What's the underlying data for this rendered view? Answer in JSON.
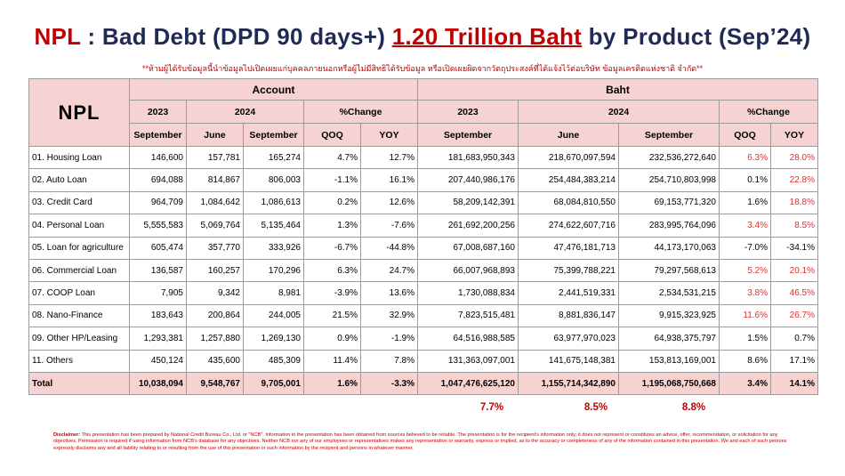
{
  "title": {
    "prefix": "NPL",
    "mid": " : Bad Debt (DPD 90 days+) ",
    "amount": "1.20 Trillion Baht",
    "suffix": " by Product (Sep’24)"
  },
  "note": "**ห้ามผู้ได้รับข้อมูลนี้นำข้อมูลไปเปิดเผยแก่บุคคลภายนอกหรือผู้ไม่มีสิทธิได้รับข้อมูล หรือเปิดเผยผิดจากวัตถุประสงค์ที่ได้แจ้งไว้ต่อบริษัท ข้อมูลเครดิตแห่งชาติ จำกัด**",
  "header": {
    "corner": "NPL",
    "account": "Account",
    "baht": "Baht",
    "y2023": "2023",
    "y2024": "2024",
    "pct_change": "%Change",
    "september": "September",
    "june": "June",
    "qoq": "QOQ",
    "yoy": "YOY"
  },
  "rows": [
    {
      "label": "01. Housing Loan",
      "a23": "146,600",
      "ajun": "157,781",
      "asep": "165,274",
      "aqoq": "4.7%",
      "ayoy": "12.7%",
      "b23": "181,683,950,343",
      "bjun": "218,670,097,594",
      "bsep": "232,536,272,640",
      "bqoq": "6.3%",
      "byoy": "28.0%"
    },
    {
      "label": "02. Auto Loan",
      "a23": "694,088",
      "ajun": "814,867",
      "asep": "806,003",
      "aqoq": "-1.1%",
      "ayoy": "16.1%",
      "b23": "207,440,986,176",
      "bjun": "254,484,383,214",
      "bsep": "254,710,803,998",
      "bqoq": "0.1%",
      "byoy": "22.8%"
    },
    {
      "label": "03. Credit Card",
      "a23": "964,709",
      "ajun": "1,084,642",
      "asep": "1,086,613",
      "aqoq": "0.2%",
      "ayoy": "12.6%",
      "b23": "58,209,142,391",
      "bjun": "68,084,810,550",
      "bsep": "69,153,771,320",
      "bqoq": "1.6%",
      "byoy": "18.8%"
    },
    {
      "label": "04. Personal Loan",
      "a23": "5,555,583",
      "ajun": "5,069,764",
      "asep": "5,135,464",
      "aqoq": "1.3%",
      "ayoy": "-7.6%",
      "b23": "261,692,200,256",
      "bjun": "274,622,607,716",
      "bsep": "283,995,764,096",
      "bqoq": "3.4%",
      "byoy": "8.5%"
    },
    {
      "label": "05. Loan for agriculture",
      "a23": "605,474",
      "ajun": "357,770",
      "asep": "333,926",
      "aqoq": "-6.7%",
      "ayoy": "-44.8%",
      "b23": "67,008,687,160",
      "bjun": "47,476,181,713",
      "bsep": "44,173,170,063",
      "bqoq": "-7.0%",
      "byoy": "-34.1%"
    },
    {
      "label": "06. Commercial Loan",
      "a23": "136,587",
      "ajun": "160,257",
      "asep": "170,296",
      "aqoq": "6.3%",
      "ayoy": "24.7%",
      "b23": "66,007,968,893",
      "bjun": "75,399,788,221",
      "bsep": "79,297,568,613",
      "bqoq": "5.2%",
      "byoy": "20.1%"
    },
    {
      "label": "07. COOP Loan",
      "a23": "7,905",
      "ajun": "9,342",
      "asep": "8,981",
      "aqoq": "-3.9%",
      "ayoy": "13.6%",
      "b23": "1,730,088,834",
      "bjun": "2,441,519,331",
      "bsep": "2,534,531,215",
      "bqoq": "3.8%",
      "byoy": "46.5%"
    },
    {
      "label": "08. Nano-Finance",
      "a23": "183,643",
      "ajun": "200,864",
      "asep": "244,005",
      "aqoq": "21.5%",
      "ayoy": "32.9%",
      "b23": "7,823,515,481",
      "bjun": "8,881,836,147",
      "bsep": "9,915,323,925",
      "bqoq": "11.6%",
      "byoy": "26.7%"
    },
    {
      "label": "09. Other HP/Leasing",
      "a23": "1,293,381",
      "ajun": "1,257,880",
      "asep": "1,269,130",
      "aqoq": "0.9%",
      "ayoy": "-1.9%",
      "b23": "64,516,988,585",
      "bjun": "63,977,970,023",
      "bsep": "64,938,375,797",
      "bqoq": "1.5%",
      "byoy": "0.7%"
    },
    {
      "label": "11. Others",
      "a23": "450,124",
      "ajun": "435,600",
      "asep": "485,309",
      "aqoq": "11.4%",
      "ayoy": "7.8%",
      "b23": "131,363,097,001",
      "bjun": "141,675,148,381",
      "bsep": "153,813,169,001",
      "bqoq": "8.6%",
      "byoy": "17.1%"
    }
  ],
  "total": {
    "label": "Total",
    "a23": "10,038,094",
    "ajun": "9,548,767",
    "asep": "9,705,001",
    "aqoq": "1.6%",
    "ayoy": "-3.3%",
    "b23": "1,047,476,625,120",
    "bjun": "1,155,714,342,890",
    "bsep": "1,195,068,750,668",
    "bqoq": "3.4%",
    "byoy": "14.1%"
  },
  "ratios": {
    "sep23": "7.7%",
    "jun24": "8.5%",
    "sep24": "8.8%"
  },
  "highlight_color": "#e03030",
  "disclaimer": {
    "label": "Disclaimer:",
    "text": " This presentation has been prepared by National Credit Bureau Co., Ltd. or \"NCB\". Information in the presentation has been obtained from sources believed to be reliable. The presentation is for the recipient's information only; it does not represent or constitutes an advice, offer, recommendation, or solicitation for any objectives. Permission is required if using information from NCB's database for any objectives. Neither NCB nor any of our employees or representatives makes any representation or warranty, express or implied, as to the accuracy or completeness of any of the information contained in this presentation. We and each of such persons expressly disclaims any and all liability relating to or resulting from the use of this presentation or such information by the recipient and persons in whatever manner."
  }
}
